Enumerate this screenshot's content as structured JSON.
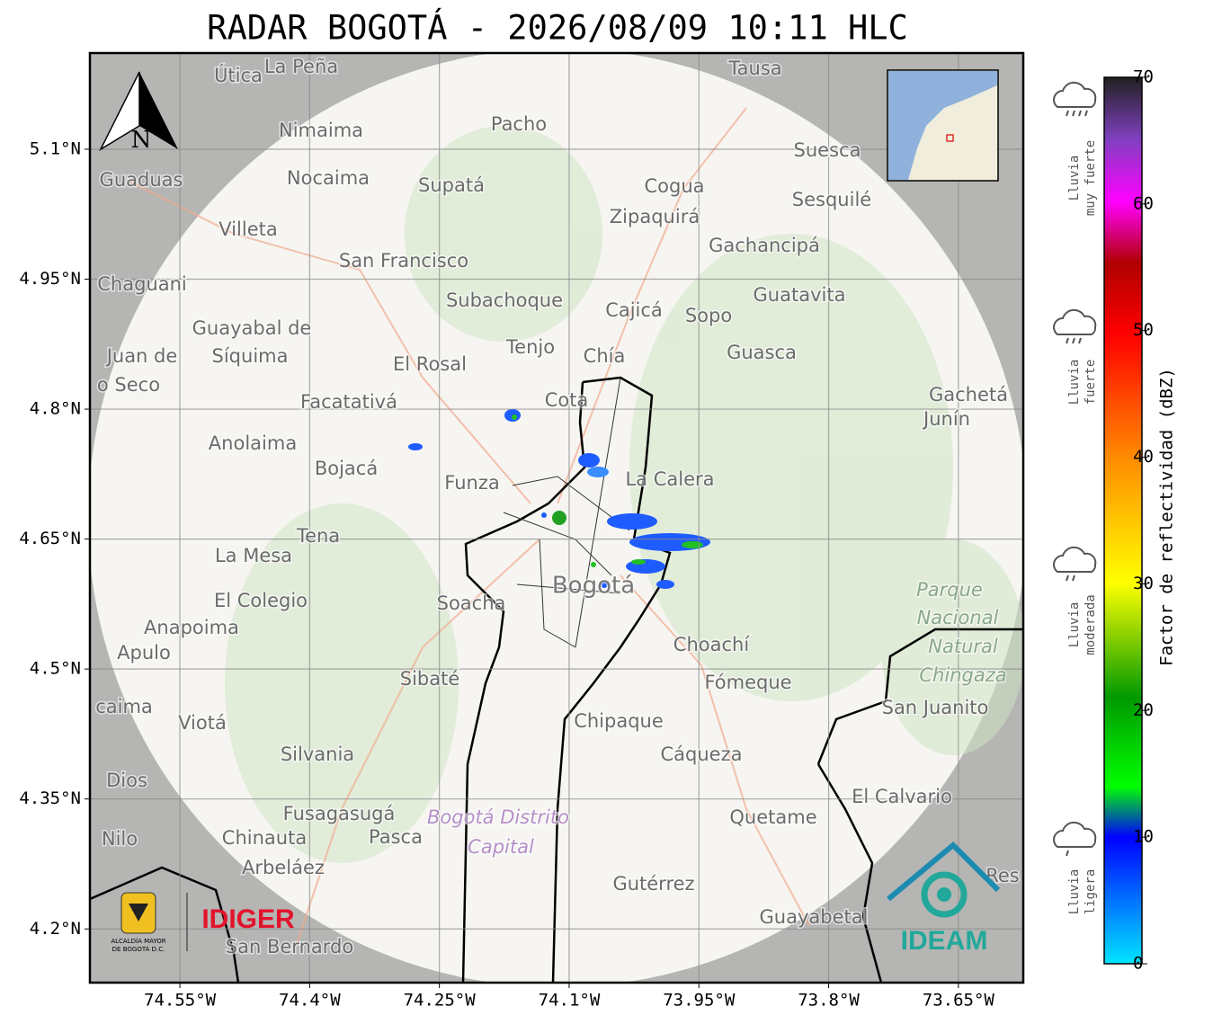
{
  "map": {
    "title": "RADAR BOGOTÁ - 2026/08/09 10:11 HLC",
    "xlim": [
      -74.654,
      -73.575
    ],
    "ylim": [
      4.138,
      5.211
    ],
    "xticks": [
      {
        "value": -74.55,
        "label": "74.55°W"
      },
      {
        "value": -74.4,
        "label": "74.4°W"
      },
      {
        "value": -74.25,
        "label": "74.25°W"
      },
      {
        "value": -74.1,
        "label": "74.1°W"
      },
      {
        "value": -73.95,
        "label": "73.95°W"
      },
      {
        "value": -73.8,
        "label": "73.8°W"
      },
      {
        "value": -73.65,
        "label": "73.65°W"
      }
    ],
    "yticks": [
      {
        "value": 5.1,
        "label": "5.1°N"
      },
      {
        "value": 4.95,
        "label": "4.95°N"
      },
      {
        "value": 4.8,
        "label": "4.8°N"
      },
      {
        "value": 4.65,
        "label": "4.65°N"
      },
      {
        "value": 4.5,
        "label": "4.5°N"
      },
      {
        "value": 4.35,
        "label": "4.35°N"
      },
      {
        "value": 4.2,
        "label": "4.2°N"
      }
    ],
    "grid": true,
    "colorbar": {
      "label": "Factor de reflectividad (dBZ)",
      "lim": [
        0,
        70
      ],
      "ticks": [
        0,
        10,
        20,
        30,
        40,
        50,
        60,
        70
      ]
    },
    "rain_classes": [
      {
        "lines": [
          "Lluvia",
          "muy fuerte"
        ]
      },
      {
        "lines": [
          "Lluvia",
          "fuerte"
        ]
      },
      {
        "lines": [
          "Lluvia",
          "moderada"
        ]
      },
      {
        "lines": [
          "Lluvia",
          "ligera"
        ]
      }
    ],
    "north": "N",
    "logos": {
      "alcaldia": [
        "ALCALDÍA MAYOR",
        "DE BOGOTÁ D.C."
      ],
      "idiger": "IDIGER",
      "ideam": "IDEAM"
    },
    "places": [
      "Útica",
      "La Peña",
      "Tausa",
      "Pacho",
      "Nimaima",
      "Suesca",
      "Guaduas",
      "Nocaima",
      "Supatá",
      "Cogua",
      "Sesquilé",
      "Zipaquirá",
      "Villeta",
      "Gachancipá",
      "San Francisco",
      "Chaguani",
      "Guatavita",
      "Subachoque",
      "Cajicá",
      "Sopo",
      "Guayabal de",
      "Síquima",
      "Juan de",
      "Tenjo",
      "Chía",
      "Guasca",
      "El Rosal",
      "o Seco",
      "Facatativá",
      "Cota",
      "Gachetá",
      "Junín",
      "Anolaima",
      "Bojacá",
      "Funza",
      "La Calera",
      "Tena",
      "La Mesa",
      "Bogotá",
      "El Colegio",
      "Soacha",
      "Parque",
      "Nacional",
      "Natural",
      "Chingaza",
      "Anapoima",
      "Apulo",
      "Choachí",
      "Sibaté",
      "Fómeque",
      "San Juanito",
      "caima",
      "Viotá",
      "Chipaque",
      "Silvania",
      "Cáqueza",
      "Dios",
      "El Calvario",
      "Fusagasugá",
      "Bogotá Distrito",
      "Quetame",
      "Nilo",
      "Chinauta",
      "Pasca",
      "Capital",
      "Arbeláez",
      "Gutérrez",
      "Res",
      "Guayabetal",
      "San Bernardo"
    ]
  }
}
